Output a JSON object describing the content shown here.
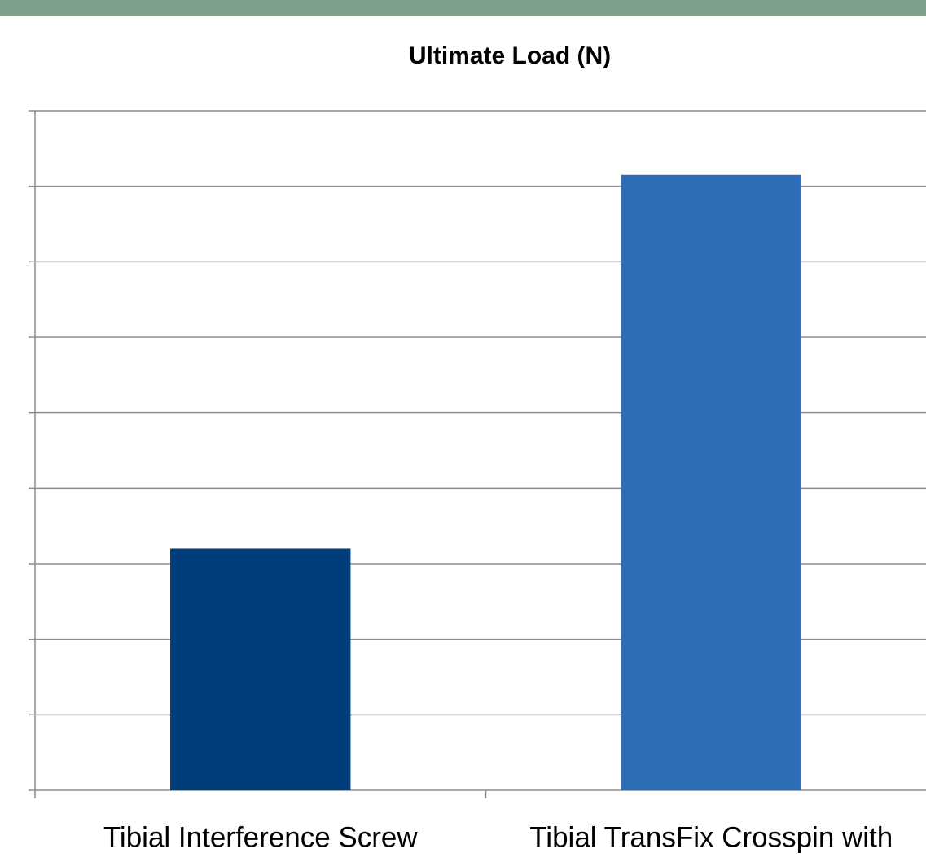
{
  "chart_data": {
    "type": "bar",
    "title": "Ultimate Load (N)",
    "categories": [
      "Tibial Interference Screw",
      "Tibial TransFix Crosspin with"
    ],
    "values": [
      3.2,
      8.15
    ],
    "colors": [
      "#003d7a",
      "#2e6db8"
    ],
    "ylim": [
      0,
      9
    ],
    "yticks": [
      0,
      1,
      2,
      3,
      4,
      5,
      6,
      7,
      8,
      9
    ],
    "grid": true
  }
}
